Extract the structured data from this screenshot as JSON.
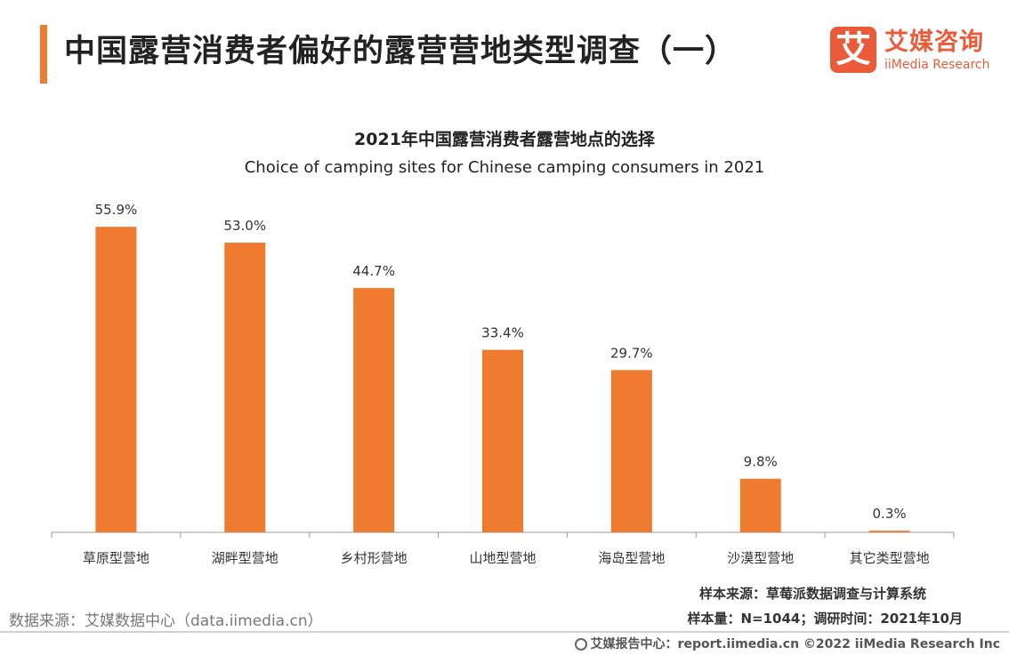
{
  "header": {
    "title": "中国露营消费者偏好的露营营地类型调查（一）",
    "accent_color": "#ee7b30"
  },
  "logo": {
    "mark": "艾",
    "name_cn": "艾媒咨询",
    "name_en": "iiMedia Research",
    "color": "#ea5b3a"
  },
  "chart_data": {
    "type": "bar",
    "title": "2021年中国露营消费者露营地点的选择",
    "subtitle": "Choice of camping sites for Chinese camping consumers in 2021",
    "categories": [
      "草原型营地",
      "湖畔型营地",
      "乡村形营地",
      "山地型营地",
      "海岛型营地",
      "沙漠型营地",
      "其它类型营地"
    ],
    "values": [
      55.9,
      53.0,
      44.7,
      33.4,
      29.7,
      9.8,
      0.3
    ],
    "value_labels": [
      "55.9%",
      "53.0%",
      "44.7%",
      "33.4%",
      "29.7%",
      "9.8%",
      "0.3%"
    ],
    "unit": "%",
    "ylim": [
      0,
      60
    ],
    "bar_color": "#ee7b30",
    "grid": false,
    "legend": "none"
  },
  "notes": {
    "sample_source": "样本来源：草莓派数据调查与计算系统",
    "sample_size": "样本量：N=1044；调研时间：2021年10月",
    "data_source": "数据来源：艾媒数据中心（data.iimedia.cn）"
  },
  "footer": {
    "text": "艾媒报告中心：report.iimedia.cn  ©2022  iiMedia Research  Inc",
    "icon": "globe-icon"
  }
}
